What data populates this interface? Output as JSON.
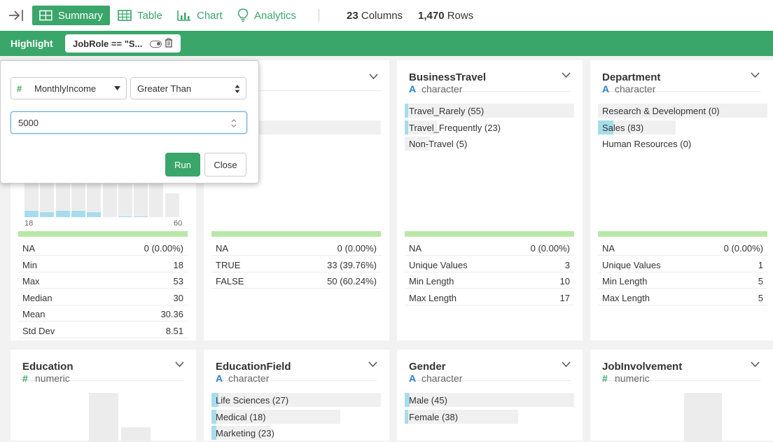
{
  "toolbar": {
    "tabs": [
      "Summary",
      "Table",
      "Chart",
      "Analytics"
    ],
    "columns_count": "23",
    "columns_label": "Columns",
    "rows_count": "1,470",
    "rows_label": "Rows"
  },
  "highlight": {
    "title": "Highlight",
    "chip": "JobRole == \"S..."
  },
  "popup": {
    "column": "MonthlyIncome",
    "operator": "Greater Than",
    "value": "5000",
    "run": "Run",
    "close": "Close"
  },
  "cards": {
    "age": {
      "axis_min": "18",
      "axis_max": "60",
      "stats": [
        {
          "k": "NA",
          "v": "0 (0.00%)"
        },
        {
          "k": "Min",
          "v": "18"
        },
        {
          "k": "Max",
          "v": "53"
        },
        {
          "k": "Median",
          "v": "30"
        },
        {
          "k": "Mean",
          "v": "30.36"
        },
        {
          "k": "Std Dev",
          "v": "8.51"
        }
      ],
      "hist_total": [
        0.6,
        0.7,
        0.88,
        0.95,
        0.95,
        0.92,
        0.8,
        0.65,
        0.5,
        0.28
      ],
      "hist_highlight": [
        0.12,
        0.1,
        0.12,
        0.12,
        0.1,
        0.0,
        0.02,
        0.02,
        0.0,
        0.0
      ]
    },
    "attrition": {
      "stats": [
        {
          "k": "NA",
          "v": "0 (0.00%)"
        },
        {
          "k": "TRUE",
          "v": "33 (39.76%)"
        },
        {
          "k": "FALSE",
          "v": "50 (60.24%)"
        }
      ]
    },
    "businesstravel": {
      "name": "BusinessTravel",
      "type": "character",
      "values": [
        {
          "label": "Travel_Rarely (55)",
          "total": 1.0,
          "highlight": 0.02
        },
        {
          "label": "Travel_Frequently (23)",
          "total": 0.19,
          "highlight": 0.02
        },
        {
          "label": "Non-Travel (5)",
          "total": 0.15,
          "highlight": 0.0
        }
      ],
      "stats": [
        {
          "k": "NA",
          "v": "0 (0.00%)"
        },
        {
          "k": "Unique Values",
          "v": "3"
        },
        {
          "k": "Min Length",
          "v": "10"
        },
        {
          "k": "Max Length",
          "v": "17"
        }
      ]
    },
    "department": {
      "name": "Department",
      "type": "character",
      "values": [
        {
          "label": "Research & Development (0)",
          "total": 1.0,
          "highlight": 0.0
        },
        {
          "label": "Sales (83)",
          "total": 0.46,
          "highlight": 0.09
        },
        {
          "label": "Human Resources (0)",
          "total": 0.0,
          "highlight": 0.0
        }
      ],
      "stats": [
        {
          "k": "NA",
          "v": "0 (0.00%)"
        },
        {
          "k": "Unique Values",
          "v": "1"
        },
        {
          "k": "Min Length",
          "v": "5"
        },
        {
          "k": "Max Length",
          "v": "5"
        }
      ]
    },
    "education": {
      "name": "Education",
      "type": "numeric"
    },
    "educationfield": {
      "name": "EducationField",
      "type": "character",
      "values": [
        {
          "label": "Life Sciences (27)",
          "total": 1.0,
          "highlight": 0.04
        },
        {
          "label": "Medical (18)",
          "total": 0.76,
          "highlight": 0.03
        },
        {
          "label": "Marketing (23)",
          "total": 0.35,
          "highlight": 0.03
        }
      ]
    },
    "gender": {
      "name": "Gender",
      "type": "character",
      "values": [
        {
          "label": "Male (45)",
          "total": 1.0,
          "highlight": 0.03
        },
        {
          "label": "Female (38)",
          "total": 0.67,
          "highlight": 0.02
        }
      ]
    },
    "jobinvolvement": {
      "name": "JobInvolvement",
      "type": "numeric"
    }
  }
}
